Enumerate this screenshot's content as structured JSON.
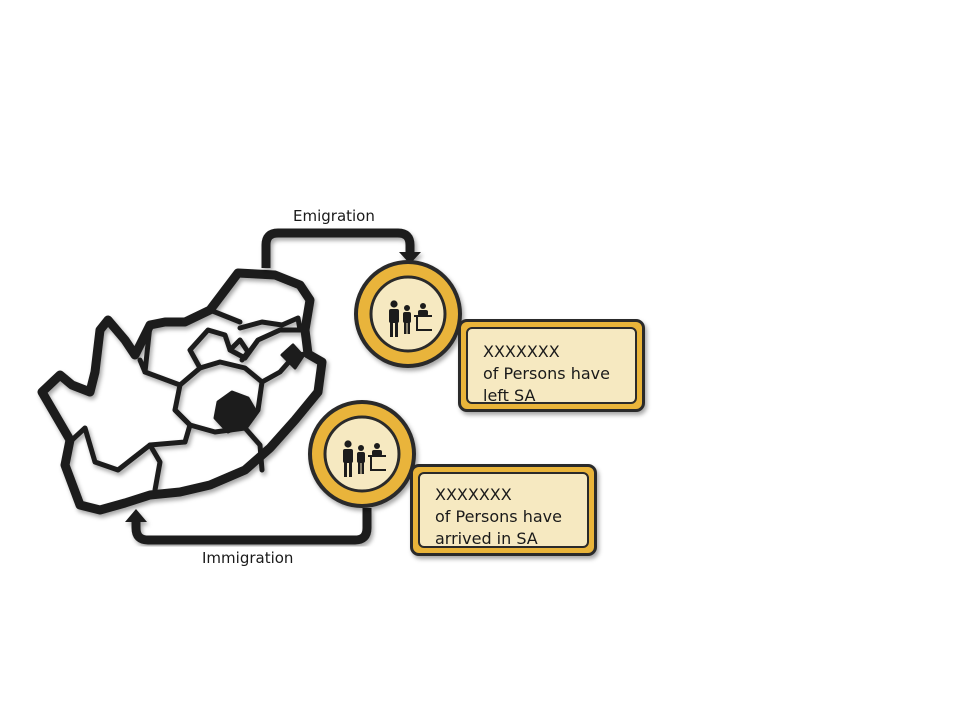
{
  "diagram": {
    "emigration": {
      "arrow_label": "Emigration",
      "icon": "people-at-counter-icon",
      "box_lines": [
        "XXXXXXX",
        "of Persons have",
        "left SA"
      ]
    },
    "immigration": {
      "arrow_label": "Immigration",
      "icon": "people-at-counter-icon",
      "box_lines": [
        "XXXXXXX",
        "of Persons have",
        "arrived in SA"
      ]
    },
    "map_icon": "south-africa-map-icon"
  },
  "colors": {
    "gold": "#e9b43a",
    "cream": "#f6e9c1",
    "outline": "#222222"
  }
}
